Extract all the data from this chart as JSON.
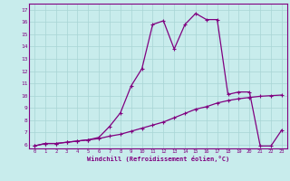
{
  "xlabel": "Windchill (Refroidissement éolien,°C)",
  "hours": [
    0,
    1,
    2,
    3,
    4,
    5,
    6,
    7,
    8,
    9,
    10,
    11,
    12,
    13,
    14,
    15,
    16,
    17,
    18,
    19,
    20,
    21,
    22,
    23
  ],
  "temp": [
    5.9,
    6.1,
    6.1,
    6.2,
    6.3,
    6.4,
    6.5,
    6.7,
    6.85,
    7.1,
    7.35,
    7.6,
    7.85,
    8.2,
    8.55,
    8.9,
    9.1,
    9.4,
    9.6,
    9.75,
    9.85,
    9.95,
    10.0,
    10.05
  ],
  "windchill": [
    5.9,
    6.1,
    6.1,
    6.2,
    6.3,
    6.4,
    6.6,
    7.5,
    8.6,
    10.8,
    12.2,
    15.8,
    16.1,
    13.8,
    15.8,
    16.7,
    16.2,
    16.2,
    10.1,
    10.3,
    10.3,
    5.9,
    5.9,
    7.2
  ],
  "ylim": [
    5.7,
    17.5
  ],
  "xlim": [
    -0.5,
    23.5
  ],
  "yticks": [
    6,
    7,
    8,
    9,
    10,
    11,
    12,
    13,
    14,
    15,
    16,
    17
  ],
  "xticks": [
    0,
    1,
    2,
    3,
    4,
    5,
    6,
    7,
    8,
    9,
    10,
    11,
    12,
    13,
    14,
    15,
    16,
    17,
    18,
    19,
    20,
    21,
    22,
    23
  ],
  "line_color": "#800080",
  "bg_color": "#c8ecec",
  "grid_color": "#a8d4d4",
  "marker_size": 3,
  "linewidth": 0.9
}
